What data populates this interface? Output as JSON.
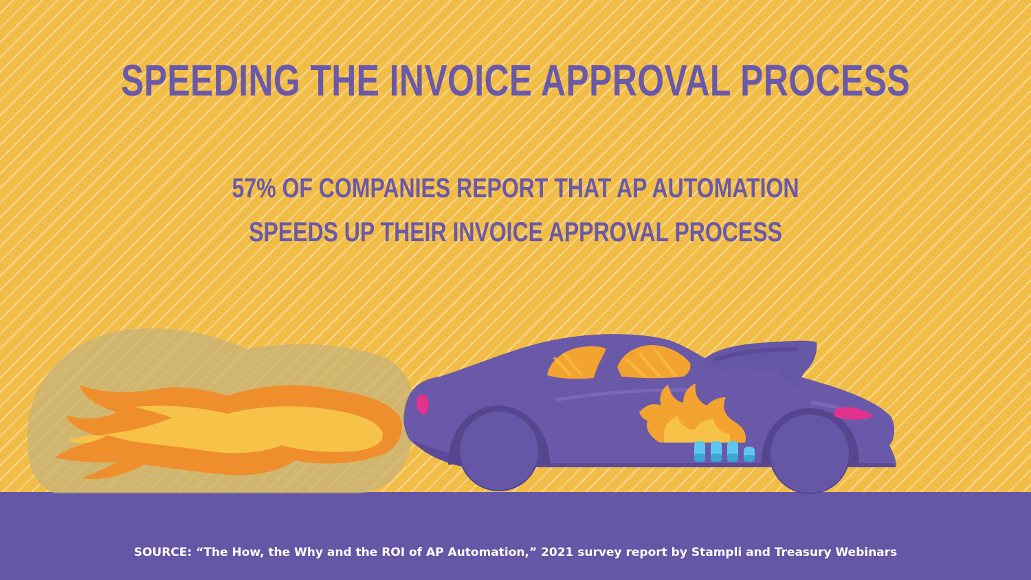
{
  "headline": "SPEEDING THE INVOICE APPROVAL PROCESS",
  "stat": {
    "line1": "57% OF COMPANIES REPORT THAT AP AUTOMATION",
    "line2": "SPEEDS UP THEIR INVOICE APPROVAL PROCESS"
  },
  "footer": {
    "source": "SOURCE: “The How, the Why and the ROI of AP Automation,” 2021 survey report by Stampli and Treasury Webinars"
  },
  "illustration": {
    "subject": "race-car-icon",
    "effects": [
      "exhaust-smoke-icon",
      "flame-icon"
    ]
  },
  "colors": {
    "background": "#f2bd47",
    "accent_purple": "#6656a6",
    "car_body": "#6a59a8",
    "flame_orange": "#ef8e2d",
    "highlight_pink": "#e2328e"
  }
}
